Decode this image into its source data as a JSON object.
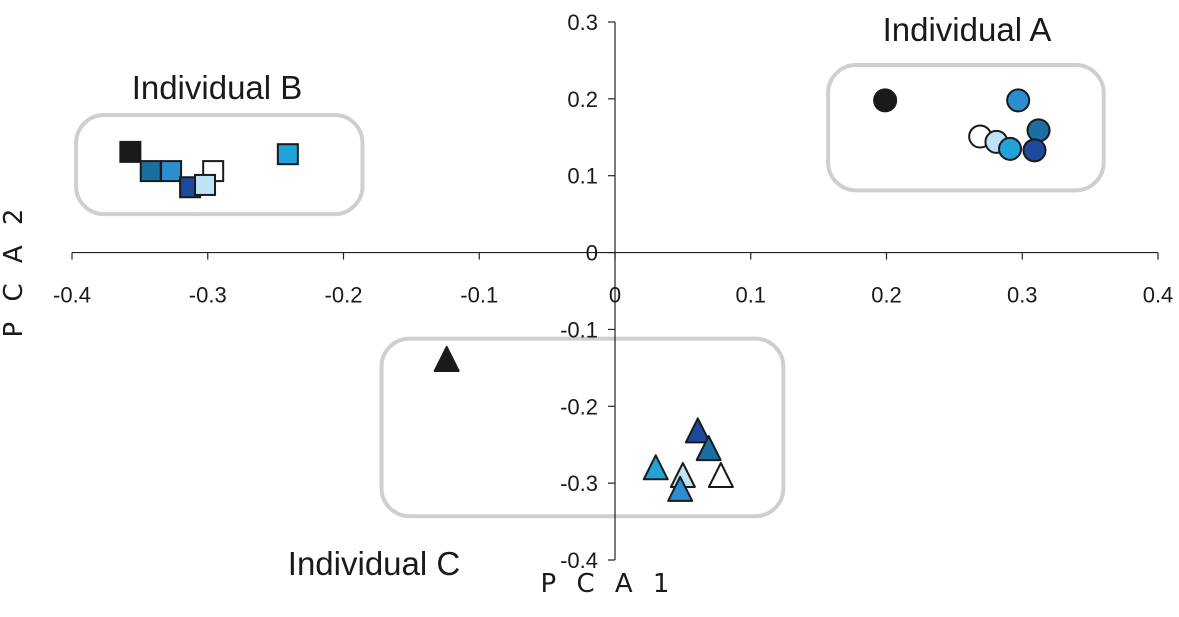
{
  "chart_data": {
    "type": "scatter",
    "xlabel": "P C A 1",
    "ylabel": "P C A 2",
    "xlim": [
      -0.4,
      0.4
    ],
    "ylim": [
      -0.4,
      0.3
    ],
    "x_ticks": [
      -0.4,
      -0.3,
      -0.2,
      -0.1,
      0,
      0.1,
      0.2,
      0.3,
      0.4
    ],
    "y_ticks": [
      -0.4,
      -0.3,
      -0.2,
      -0.1,
      0,
      0.1,
      0.2,
      0.3
    ],
    "x_tick_labels": [
      "-0.4",
      "-0.3",
      "-0.2",
      "-0.1",
      "0",
      "0.1",
      "0.2",
      "0.3",
      "0.4"
    ],
    "y_tick_labels": [
      "-0.4",
      "-0.3",
      "-0.2",
      "-0.1",
      "0",
      "0.1",
      "0.2",
      "0.3"
    ],
    "grid": false,
    "groups": [
      {
        "label": "Individual A",
        "marker": "circle",
        "box": {
          "x": [
            0.157,
            0.36
          ],
          "y": [
            0.081,
            0.244
          ]
        },
        "points": [
          {
            "x": 0.199,
            "y": 0.198,
            "color": "#1a1a1a"
          },
          {
            "x": 0.297,
            "y": 0.198,
            "color": "#2a8fd0"
          },
          {
            "x": 0.269,
            "y": 0.151,
            "color": "#ffffff"
          },
          {
            "x": 0.281,
            "y": 0.144,
            "color": "#bfe3f6"
          },
          {
            "x": 0.291,
            "y": 0.135,
            "color": "#1fa3d8"
          },
          {
            "x": 0.312,
            "y": 0.159,
            "color": "#1a6ea0"
          },
          {
            "x": 0.309,
            "y": 0.133,
            "color": "#1d4a9e"
          }
        ]
      },
      {
        "label": "Individual B",
        "marker": "square",
        "box": {
          "x": [
            -0.397,
            -0.186
          ],
          "y": [
            0.05,
            0.179
          ]
        },
        "points": [
          {
            "x": -0.357,
            "y": 0.131,
            "color": "#1a1a1a"
          },
          {
            "x": -0.342,
            "y": 0.106,
            "color": "#1a6ea0"
          },
          {
            "x": -0.327,
            "y": 0.106,
            "color": "#2a8fd0"
          },
          {
            "x": -0.296,
            "y": 0.106,
            "color": "#ffffff"
          },
          {
            "x": -0.313,
            "y": 0.085,
            "color": "#1d4a9e"
          },
          {
            "x": -0.302,
            "y": 0.088,
            "color": "#bfe3f6"
          },
          {
            "x": -0.241,
            "y": 0.128,
            "color": "#1fa3d8"
          }
        ]
      },
      {
        "label": "Individual C",
        "marker": "triangle",
        "box": {
          "x": [
            -0.172,
            0.124
          ],
          "y": [
            -0.343,
            -0.112
          ]
        },
        "points": [
          {
            "x": -0.124,
            "y": -0.141,
            "color": "#1a1a1a"
          },
          {
            "x": 0.061,
            "y": -0.234,
            "color": "#1d4a9e"
          },
          {
            "x": 0.069,
            "y": -0.257,
            "color": "#1a6ea0"
          },
          {
            "x": 0.03,
            "y": -0.282,
            "color": "#1fa3d8"
          },
          {
            "x": 0.05,
            "y": -0.292,
            "color": "#bfe3f6"
          },
          {
            "x": 0.078,
            "y": -0.292,
            "color": "#ffffff"
          },
          {
            "x": 0.048,
            "y": -0.31,
            "color": "#2a8fd0"
          }
        ]
      }
    ]
  }
}
